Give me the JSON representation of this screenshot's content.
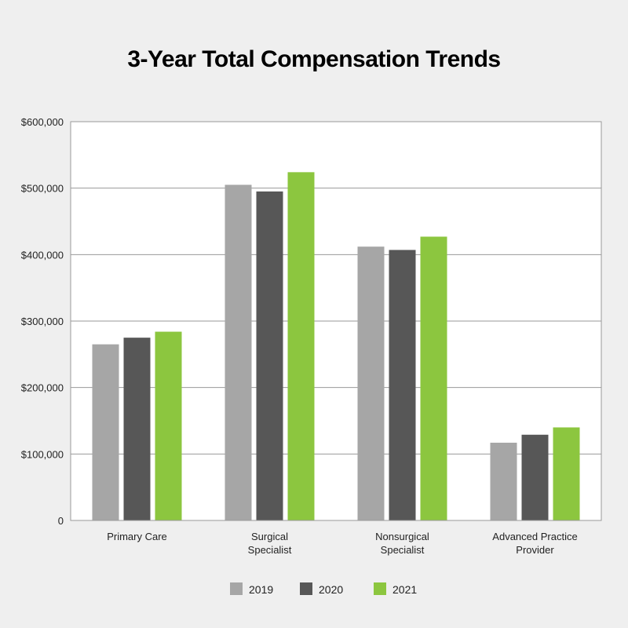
{
  "chart_data": {
    "type": "bar",
    "title": "3-Year Total Compensation Trends",
    "xlabel": "",
    "ylabel": "",
    "ylim": [
      0,
      600000
    ],
    "yticks": [
      {
        "value": 0,
        "label": "0"
      },
      {
        "value": 100000,
        "label": "$100,000"
      },
      {
        "value": 200000,
        "label": "$200,000"
      },
      {
        "value": 300000,
        "label": "$300,000"
      },
      {
        "value": 400000,
        "label": "$400,000"
      },
      {
        "value": 500000,
        "label": "$500,000"
      },
      {
        "value": 600000,
        "label": "$600,000"
      }
    ],
    "grid": true,
    "legend_position": "bottom",
    "categories": [
      [
        "Primary Care"
      ],
      [
        "Surgical",
        "Specialist"
      ],
      [
        "Nonsurgical",
        "Specialist"
      ],
      [
        "Advanced Practice",
        "Provider"
      ]
    ],
    "series": [
      {
        "name": "2019",
        "color": "#a6a6a6",
        "values": [
          265000,
          505000,
          412000,
          117000
        ]
      },
      {
        "name": "2020",
        "color": "#575757",
        "values": [
          275000,
          495000,
          407000,
          129000
        ]
      },
      {
        "name": "2021",
        "color": "#8cc63f",
        "values": [
          284000,
          524000,
          427000,
          140000
        ]
      }
    ]
  }
}
